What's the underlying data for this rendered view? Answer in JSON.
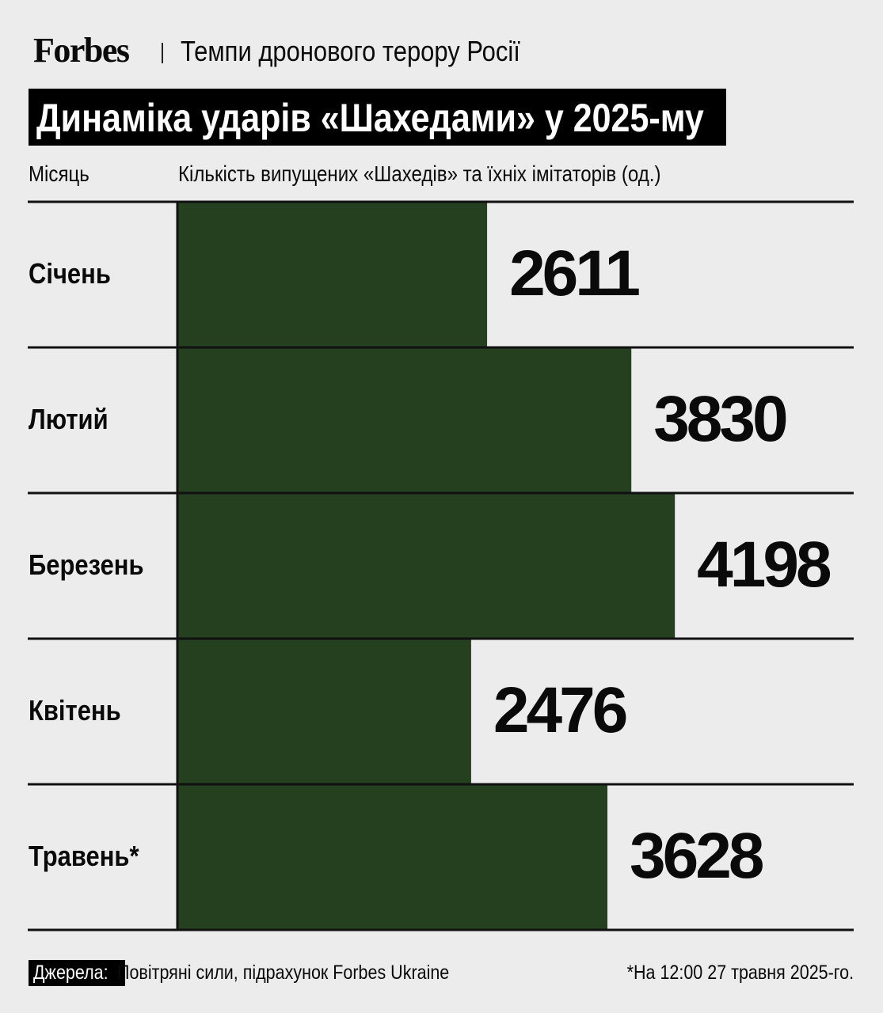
{
  "header": {
    "logo": "Forbes",
    "kicker": "Темпи дронового терору Росії",
    "title": "Динаміка ударів «Шахедами» у 2025-му"
  },
  "chart_data": {
    "type": "bar",
    "orientation": "horizontal",
    "title": "Динаміка ударів «Шахедами» у 2025-му",
    "category_header": "Місяць",
    "value_header": "Кількість випущених «Шахедів» та їхніх імітаторів (од.)",
    "categories": [
      "Січень",
      "Лютий",
      "Березень",
      "Квітень",
      "Травень*"
    ],
    "values": [
      2611,
      3830,
      4198,
      2476,
      3628
    ],
    "bar_color": "#24401f",
    "data_labels": true,
    "grid": false
  },
  "footer": {
    "source_label": "Джерела:",
    "source_text": "Повітряні сили, підрахунок Forbes Ukraine",
    "note": "*На 12:00 27 травня 2025-го."
  }
}
